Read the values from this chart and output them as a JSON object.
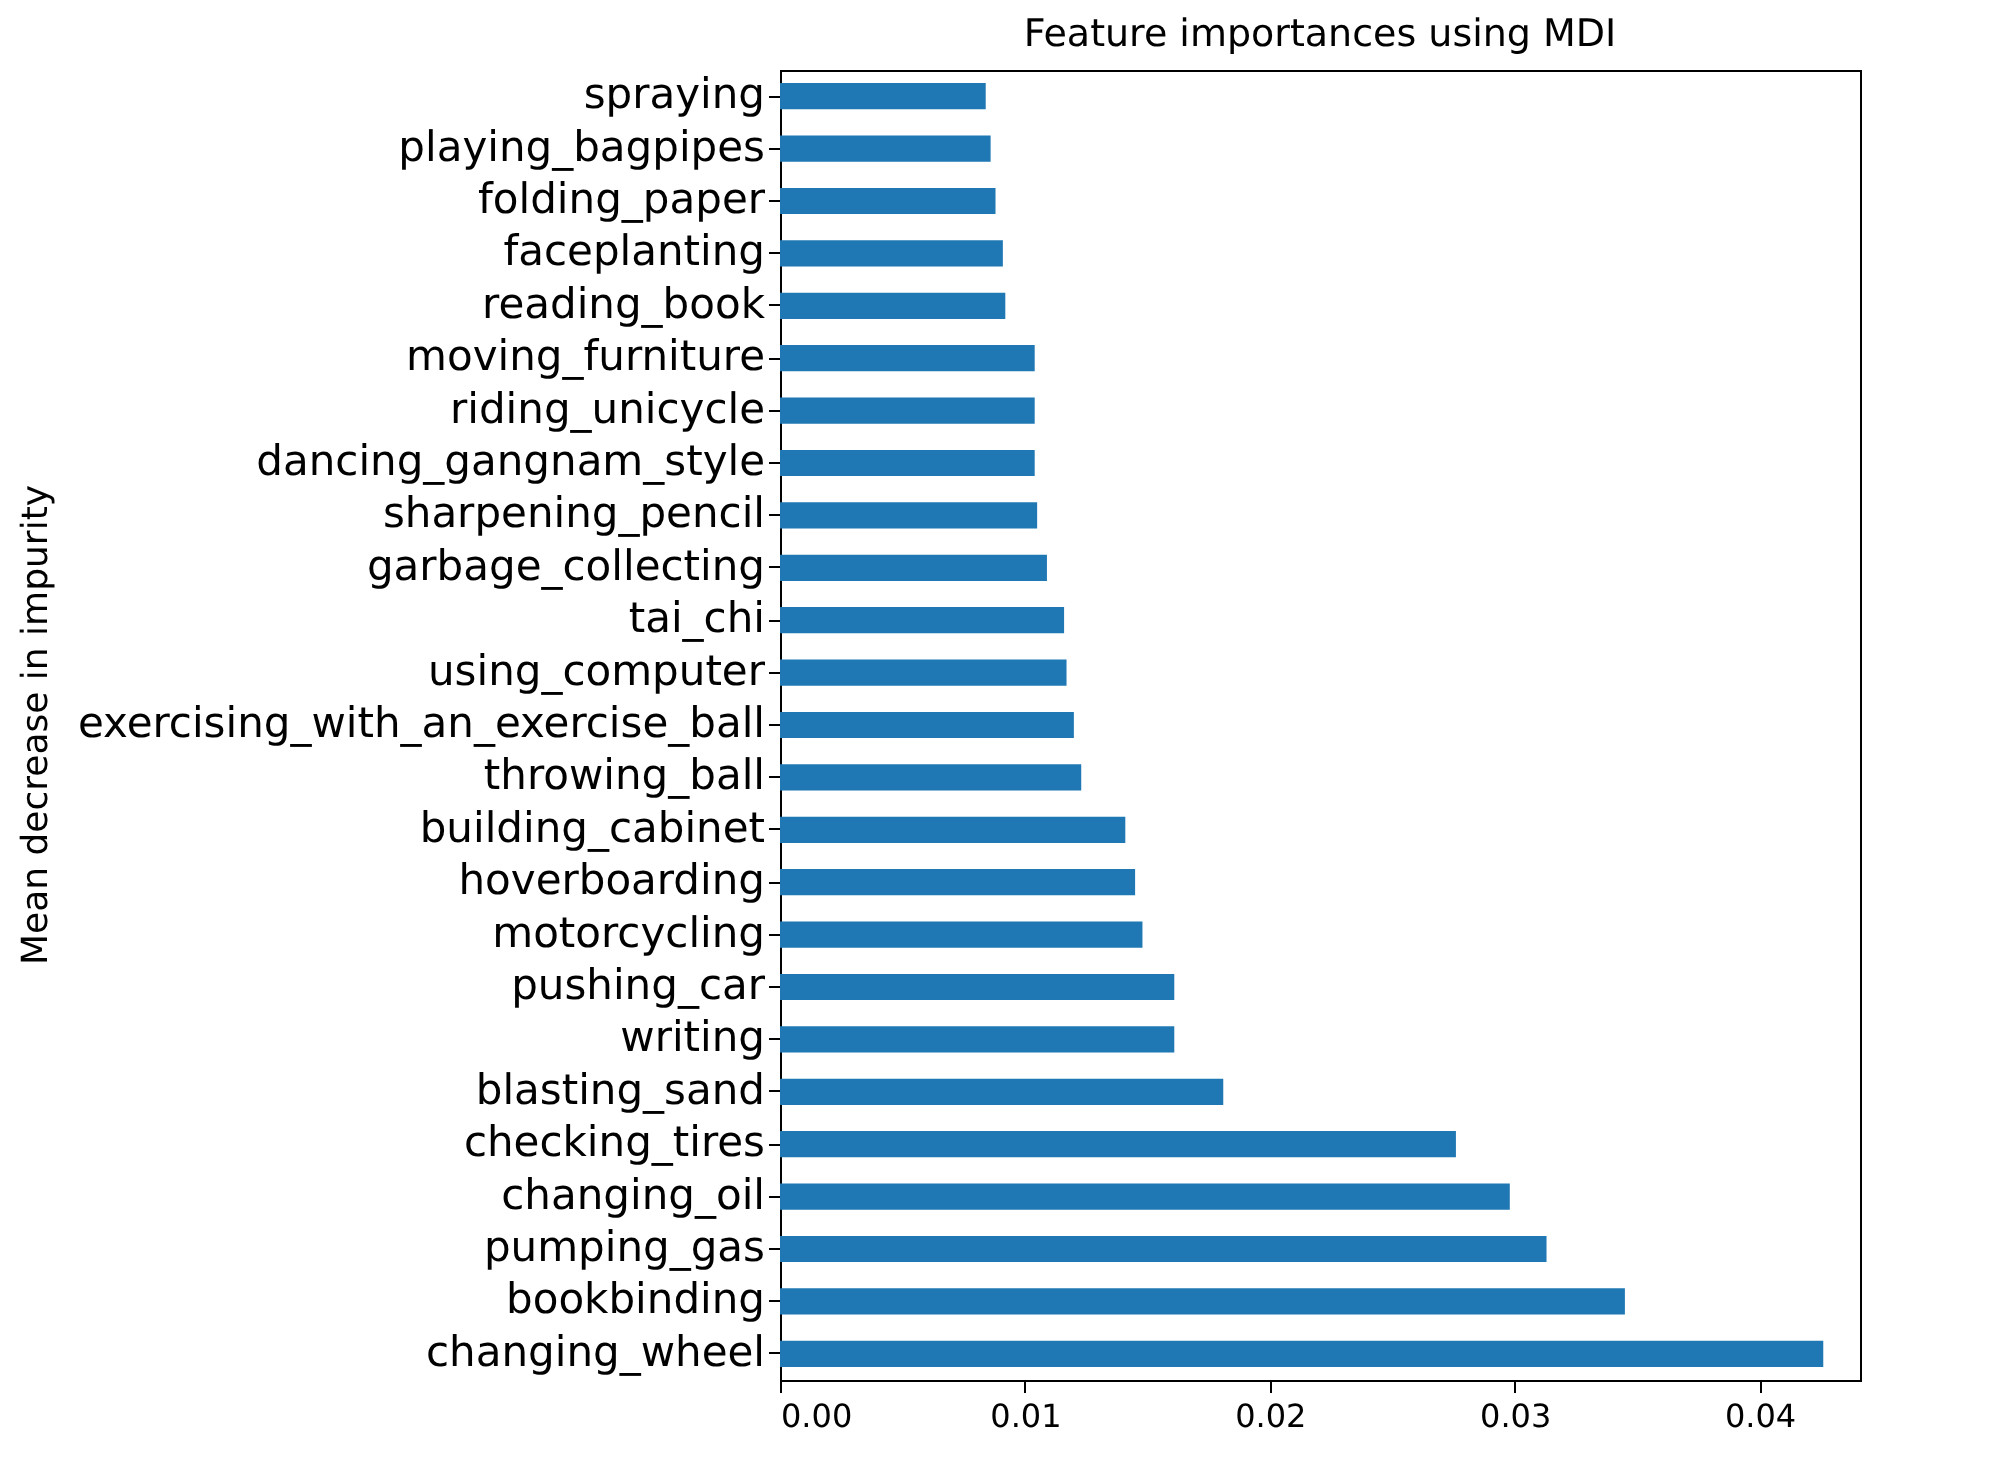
{
  "chart_data": {
    "type": "bar",
    "orientation": "horizontal",
    "title": "Feature importances using MDI",
    "ylabel": "Mean decrease in impurity",
    "categories": [
      "spraying",
      "playing_bagpipes",
      "folding_paper",
      "faceplanting",
      "reading_book",
      "moving_furniture",
      "riding_unicycle",
      "dancing_gangnam_style",
      "sharpening_pencil",
      "garbage_collecting",
      "tai_chi",
      "using_computer",
      "exercising_with_an_exercise_ball",
      "throwing_ball",
      "building_cabinet",
      "hoverboarding",
      "motorcycling",
      "pushing_car",
      "writing",
      "blasting_sand",
      "checking_tires",
      "changing_oil",
      "pumping_gas",
      "bookbinding",
      "changing_wheel"
    ],
    "values": [
      0.0084,
      0.0086,
      0.0088,
      0.0091,
      0.0092,
      0.0104,
      0.0104,
      0.0104,
      0.0105,
      0.0109,
      0.0116,
      0.0117,
      0.012,
      0.0123,
      0.0141,
      0.0145,
      0.0148,
      0.0161,
      0.0161,
      0.0181,
      0.0276,
      0.0298,
      0.0313,
      0.0345,
      0.0426
    ],
    "color": "#1f77b4",
    "xlim": [
      0,
      0.0441
    ],
    "xticks": [
      {
        "value": 0,
        "label": "0.00"
      },
      {
        "value": 0.01,
        "label": "0.01"
      },
      {
        "value": 0.02,
        "label": "0.02"
      },
      {
        "value": 0.03,
        "label": "0.03"
      },
      {
        "value": 0.04,
        "label": "0.04"
      }
    ],
    "grid": false
  }
}
